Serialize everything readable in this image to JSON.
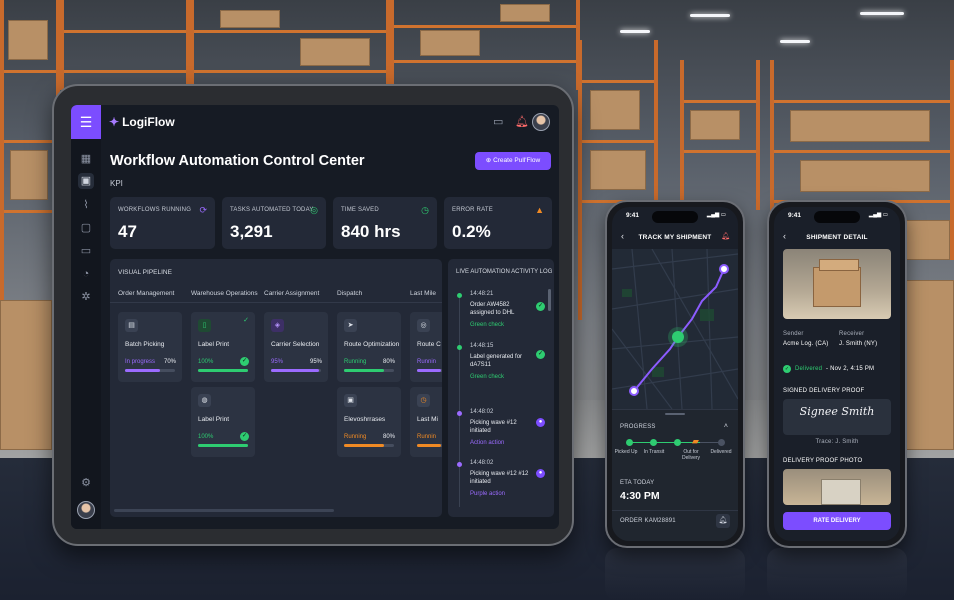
{
  "app": {
    "name": "LogiFlow"
  },
  "colors": {
    "accent": "#7c4dff",
    "success": "#2ecc71",
    "warning": "#f08a24",
    "danger": "#f08a24"
  },
  "header": {
    "title": "Workflow Automation Control Center",
    "kpi_label": "KPI",
    "create_label": "Create Pull'Flow"
  },
  "kpis": [
    {
      "title": "WORKFLOWS RUNNING",
      "value": "47",
      "icon": "refresh-icon"
    },
    {
      "title": "TASKS AUTOMATED TODAY",
      "value": "3,291",
      "icon": "check-circle-icon"
    },
    {
      "title": "TIME SAVED",
      "value": "840 hrs",
      "icon": "clock-icon"
    },
    {
      "title": "ERROR RATE",
      "value": "0.2%",
      "icon": "warning-icon"
    }
  ],
  "pipeline": {
    "title": "VISUAL PIPELINE",
    "columns": [
      "Order Management",
      "Warehouse Operations",
      "Carrier Assignment",
      "Dispatch",
      "Last Mile"
    ],
    "tasks": [
      {
        "name": "Batch Picking",
        "status": "In progress",
        "pct": "70%",
        "progress": 0.7,
        "color": "#9b6bff"
      },
      {
        "name": "Label Print",
        "status": "100%",
        "pct": "",
        "progress": 1.0,
        "color": "#2ecc71"
      },
      {
        "name": "Label Print",
        "status": "100%",
        "pct": "",
        "progress": 1.0,
        "color": "#2ecc71"
      },
      {
        "name": "Carrier Selection",
        "status": "95%",
        "pct": "95%",
        "progress": 0.95,
        "color": "#9b6bff"
      },
      {
        "name": "Route Optimization",
        "status": "Running",
        "pct": "80%",
        "progress": 0.8,
        "color": "#2ecc71"
      },
      {
        "name": "Elevoshrrases",
        "status": "Running",
        "pct": "80%",
        "progress": 0.8,
        "color": "#f08a24"
      },
      {
        "name": "Route C",
        "status": "Runnin",
        "pct": "",
        "progress": 0.6,
        "color": "#9b6bff"
      },
      {
        "name": "Last Mi",
        "status": "Runnin",
        "pct": "",
        "progress": 0.6,
        "color": "#f08a24"
      }
    ]
  },
  "activity": {
    "title": "LIVE AUTOMATION ACTIVITY LOG",
    "items": [
      {
        "time": "14:48:21",
        "text": "Order AW4582 assigned to DHL",
        "tag": "Green check",
        "tag_color": "#2ecc71"
      },
      {
        "time": "14:48:15",
        "text": "Label generated for dA7S11",
        "tag": "Green check",
        "tag_color": "#2ecc71"
      },
      {
        "time": "14:48:02",
        "text": "Picking wave #12 initiated",
        "tag": "Action action",
        "tag_color": "#9b6bff"
      },
      {
        "time": "14:48:02",
        "text": "Picking wave #12 #12 initiated",
        "tag": "Purple action",
        "tag_color": "#9b6bff"
      }
    ]
  },
  "track_phone": {
    "time": "9:41",
    "title": "TRACK MY SHIPMENT",
    "progress_label": "PROGRESS",
    "steps": [
      "Picked Up",
      "In Transit",
      "Out for Delivery",
      "Delivered"
    ],
    "eta_label": "ETA TODAY",
    "eta_value": "4:30 PM",
    "order_label": "ORDER KAM28891"
  },
  "detail_phone": {
    "time": "9:41",
    "title": "SHIPMENT DETAIL",
    "sender_label": "Sender",
    "sender_value": "Acme Log. (CA)",
    "receiver_label": "Receiver",
    "receiver_value": "J. Smith (NY)",
    "delivered_text": "Delivered",
    "delivered_date": "- Nov 2, 4:15 PM",
    "proof_label": "SIGNED DELIVERY PROOF",
    "signature": "Signee Smith",
    "trace": "Trace: J. Smith",
    "photo_label": "DELIVERY PROOF PHOTO",
    "rate_label": "RATE DELIVERY"
  }
}
